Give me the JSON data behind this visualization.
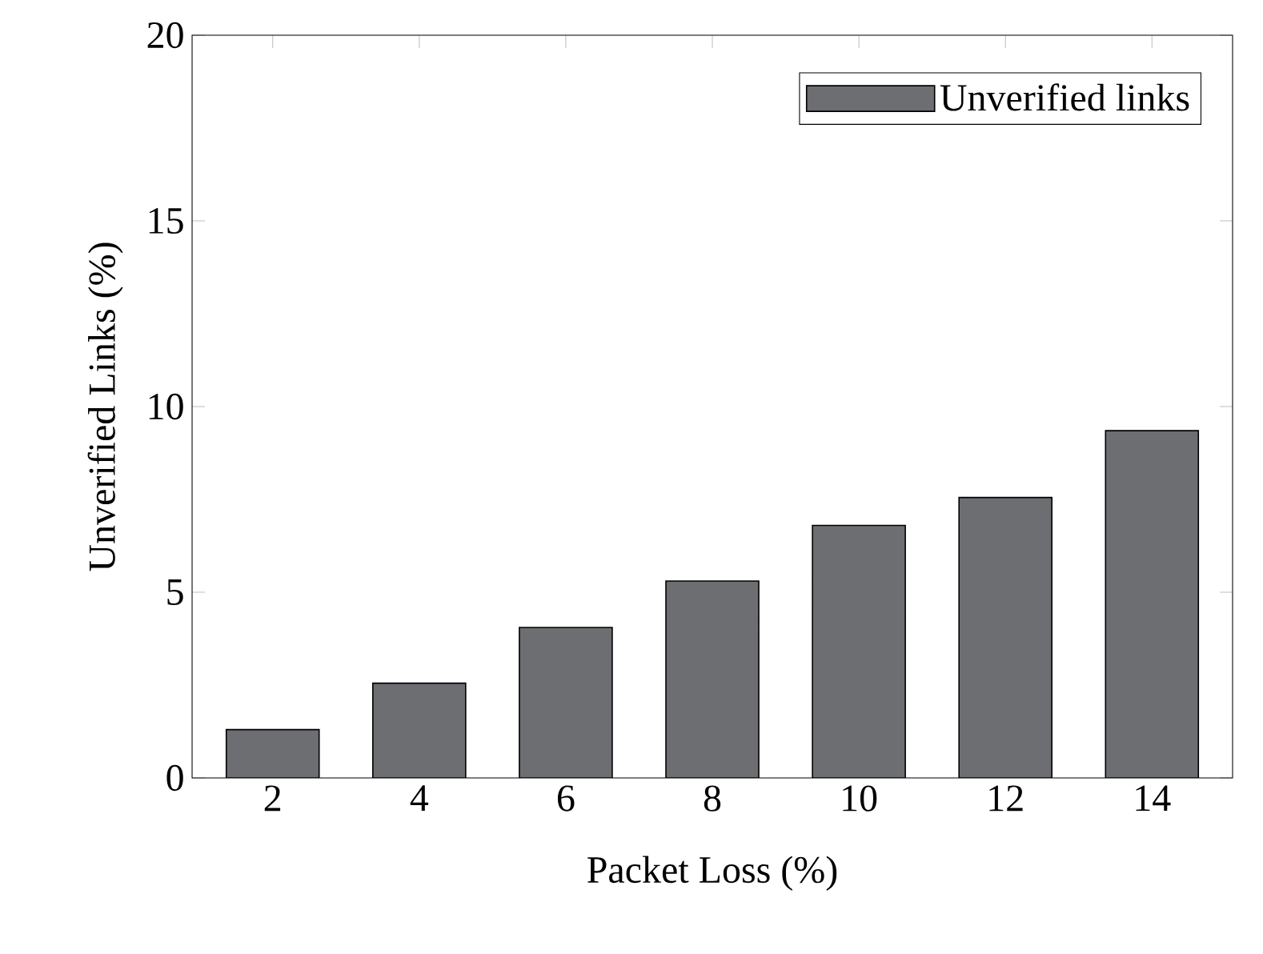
{
  "chart_data": {
    "type": "bar",
    "xlabel": "Packet Loss (%)",
    "ylabel": "Unverified Links (%)",
    "categories": [
      "2",
      "4",
      "6",
      "8",
      "10",
      "12",
      "14"
    ],
    "series": [
      {
        "name": "Unverified links",
        "color": "#6d6e71",
        "values": [
          1.3,
          2.55,
          4.05,
          5.3,
          6.8,
          7.55,
          9.35
        ]
      }
    ],
    "ylim": [
      0,
      20
    ],
    "yticks": [
      0,
      5,
      10,
      15,
      20
    ],
    "legend": "top right",
    "grid": false
  }
}
